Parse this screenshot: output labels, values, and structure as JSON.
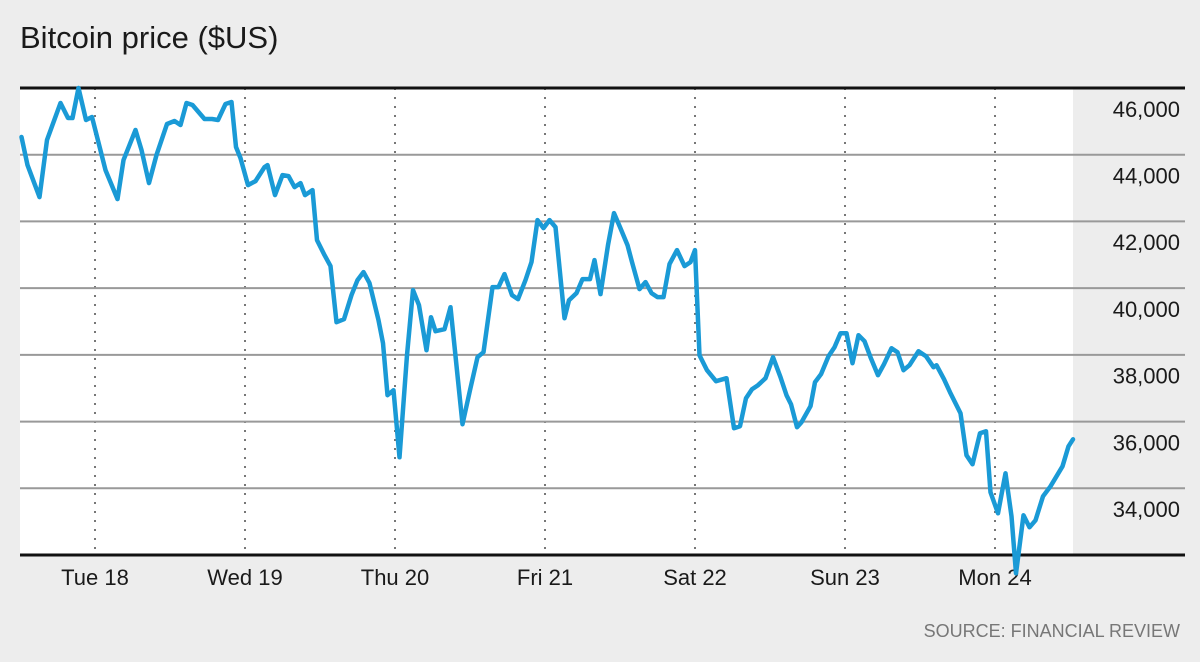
{
  "chart_data": {
    "type": "line",
    "title": "Bitcoin price ($US)",
    "source": "SOURCE: FINANCIAL REVIEW",
    "xlim": [
      -0.5,
      6.52
    ],
    "xticks": [
      {
        "value": 0,
        "label": "Tue 18"
      },
      {
        "value": 1,
        "label": "Wed 19"
      },
      {
        "value": 2,
        "label": "Thu 20"
      },
      {
        "value": 3,
        "label": "Fri 21"
      },
      {
        "value": 4,
        "label": "Sat 22"
      },
      {
        "value": 5,
        "label": "Sun 23"
      },
      {
        "value": 6,
        "label": "Mon 24"
      }
    ],
    "ylim": [
      32000,
      46000
    ],
    "yticks": [
      {
        "value": 34000,
        "label": "34,000"
      },
      {
        "value": 36000,
        "label": "36,000"
      },
      {
        "value": 38000,
        "label": "38,000"
      },
      {
        "value": 40000,
        "label": "40,000"
      },
      {
        "value": 42000,
        "label": "42,000"
      },
      {
        "value": 44000,
        "label": "44,000"
      },
      {
        "value": 46000,
        "label": "46,000"
      }
    ],
    "grid": true,
    "color": "#1a9ad6",
    "x": [
      -0.49,
      -0.45,
      -0.37,
      -0.32,
      -0.23,
      -0.18,
      -0.15,
      -0.11,
      -0.06,
      -0.02,
      0.07,
      0.15,
      0.19,
      0.27,
      0.31,
      0.36,
      0.41,
      0.48,
      0.53,
      0.57,
      0.61,
      0.65,
      0.73,
      0.78,
      0.82,
      0.87,
      0.91,
      0.94,
      0.97,
      1.02,
      1.07,
      1.13,
      1.15,
      1.2,
      1.25,
      1.29,
      1.33,
      1.37,
      1.4,
      1.45,
      1.48,
      1.53,
      1.57,
      1.61,
      1.66,
      1.71,
      1.75,
      1.79,
      1.83,
      1.89,
      1.92,
      1.95,
      1.99,
      2.03,
      2.08,
      2.12,
      2.16,
      2.21,
      2.24,
      2.27,
      2.33,
      2.37,
      2.45,
      2.5,
      2.55,
      2.59,
      2.65,
      2.69,
      2.73,
      2.78,
      2.82,
      2.87,
      2.91,
      2.95,
      2.99,
      3.03,
      3.07,
      3.13,
      3.16,
      3.21,
      3.25,
      3.3,
      3.33,
      3.37,
      3.42,
      3.46,
      3.5,
      3.55,
      3.58,
      3.63,
      3.67,
      3.71,
      3.75,
      3.79,
      3.83,
      3.88,
      3.93,
      3.97,
      4.0,
      4.03,
      4.08,
      4.14,
      4.21,
      4.26,
      4.3,
      4.34,
      4.38,
      4.42,
      4.47,
      4.52,
      4.57,
      4.61,
      4.64,
      4.68,
      4.71,
      4.77,
      4.8,
      4.84,
      4.89,
      4.93,
      4.97,
      5.01,
      5.05,
      5.09,
      5.13,
      5.17,
      5.22,
      5.26,
      5.31,
      5.35,
      5.39,
      5.43,
      5.49,
      5.54,
      5.59,
      5.61,
      5.66,
      5.7,
      5.77,
      5.81,
      5.85,
      5.9,
      5.94,
      5.97,
      6.02,
      6.07,
      6.11,
      6.14,
      6.19,
      6.23,
      6.27,
      6.32,
      6.37,
      6.41,
      6.45,
      6.49,
      6.52
    ],
    "values": [
      44530,
      43690,
      42730,
      44440,
      45550,
      45100,
      45100,
      46000,
      45040,
      45130,
      43540,
      42670,
      43840,
      44740,
      44140,
      43150,
      43990,
      44920,
      45010,
      44890,
      45550,
      45490,
      45070,
      45070,
      45040,
      45520,
      45580,
      44230,
      43900,
      43090,
      43210,
      43630,
      43690,
      42790,
      43390,
      43360,
      43030,
      43150,
      42790,
      42940,
      41440,
      40990,
      40660,
      38980,
      39070,
      39790,
      40240,
      40480,
      40150,
      39040,
      38350,
      36790,
      36940,
      34930,
      37990,
      39940,
      39490,
      38140,
      39130,
      38710,
      38770,
      39430,
      35920,
      36940,
      37930,
      38080,
      40030,
      40030,
      40420,
      39790,
      39670,
      40240,
      40780,
      42040,
      41800,
      42040,
      41830,
      39100,
      39640,
      39850,
      40270,
      40270,
      40840,
      39820,
      41290,
      42250,
      41830,
      41290,
      40780,
      39970,
      40180,
      39850,
      39730,
      39730,
      40720,
      41140,
      40660,
      40780,
      41140,
      37990,
      37540,
      37210,
      37300,
      35800,
      35860,
      36700,
      36970,
      37090,
      37300,
      37930,
      37330,
      36790,
      36520,
      35830,
      35980,
      36460,
      37180,
      37420,
      37960,
      38230,
      38650,
      38650,
      37750,
      38590,
      38410,
      37930,
      37390,
      37720,
      38200,
      38080,
      37540,
      37690,
      38110,
      37960,
      37630,
      37690,
      37270,
      36880,
      36250,
      34990,
      34720,
      35650,
      35710,
      33880,
      33250,
      34450,
      33160,
      31450,
      33190,
      32830,
      33040,
      33760,
      34060,
      34360,
      34660,
      35260,
      35470
    ]
  }
}
